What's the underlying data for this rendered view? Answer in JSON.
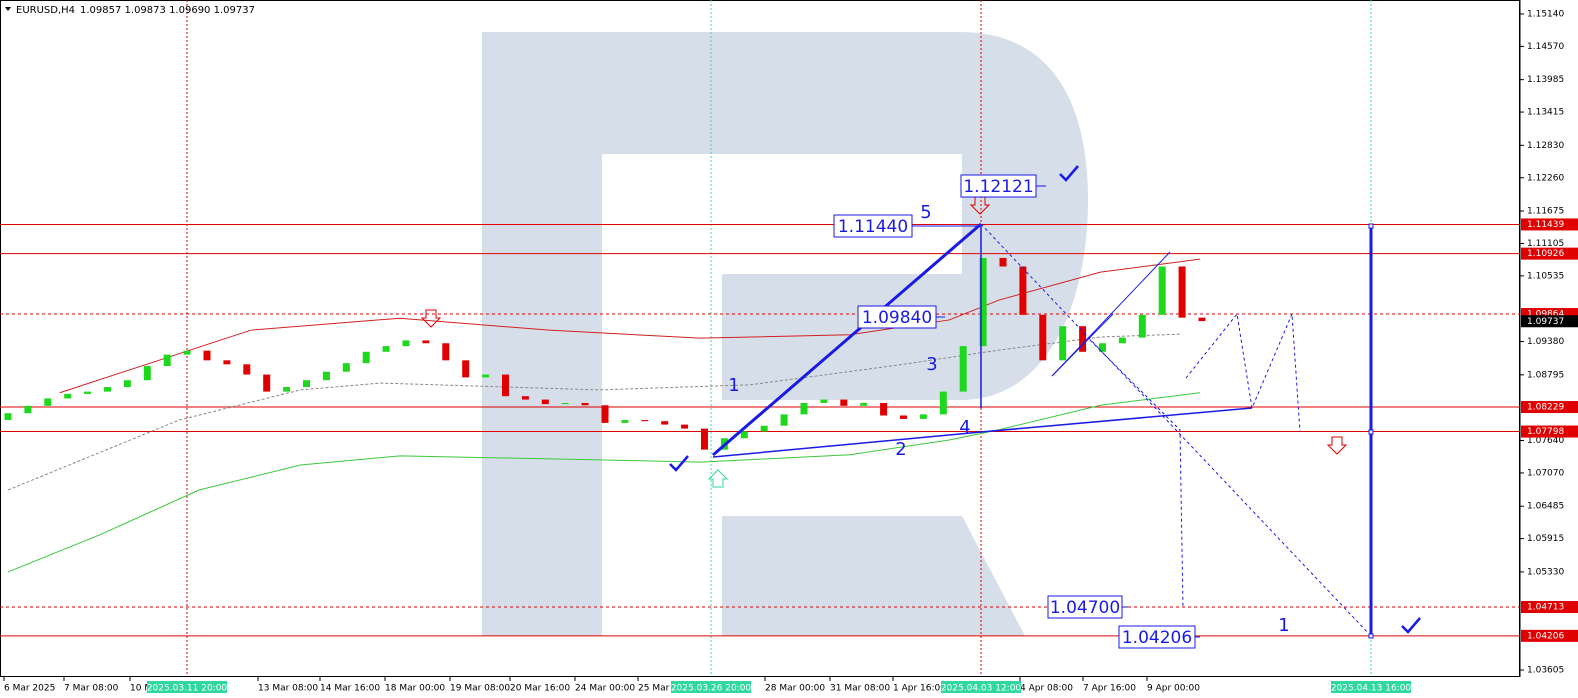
{
  "header": {
    "symbol": "EURUSD,H4",
    "quote": "1.09857 1.09873 1.09690 1.09737"
  },
  "chart_data": {
    "type": "candlestick",
    "ylim": [
      1.035,
      1.1535
    ],
    "yticks": [
      {
        "value": 1.1514,
        "label": "1.15140"
      },
      {
        "value": 1.1457,
        "label": "1.14570"
      },
      1.13985,
      1.13415,
      {
        "value": 1.1283,
        "label": "1.12830"
      },
      {
        "value": 1.1226,
        "label": "1.12260"
      },
      1.11675,
      1.11105,
      1.10535,
      {
        "value": 1.0938,
        "label": "1.09380"
      },
      1.08795,
      {
        "value": 1.0764,
        "label": "1.07640"
      },
      {
        "value": 1.0707,
        "label": "1.07070"
      },
      1.06485,
      1.05915,
      {
        "value": 1.0533,
        "label": "1.05330"
      },
      1.03605
    ],
    "up_color": "#1ed81e",
    "down_color": "#e00000",
    "open": [
      1.08,
      1.0812,
      1.0825,
      1.0838,
      1.0846,
      1.085,
      1.0858,
      1.087,
      1.0895,
      1.0915,
      1.0922,
      1.0905,
      1.0898,
      1.088,
      1.085,
      1.0858,
      1.087,
      1.0885,
      1.09,
      1.092,
      1.093,
      1.094,
      1.0935,
      1.0905,
      1.0875,
      1.088,
      1.0842,
      1.0836,
      1.0828,
      1.083,
      1.0826,
      1.0795,
      1.08,
      1.0798,
      1.0792,
      1.0785,
      1.0748,
      1.0768,
      1.078,
      1.079,
      1.081,
      1.083,
      1.0836,
      1.0825,
      1.083,
      1.0808,
      1.0802,
      1.081,
      1.085,
      1.093,
      1.1085,
      1.107,
      1.0985,
      1.0905,
      1.0965,
      1.092,
      1.0935,
      1.0945,
      1.0985,
      1.107,
      1.098
    ],
    "close": [
      1.0812,
      1.0825,
      1.0838,
      1.0846,
      1.085,
      1.0858,
      1.087,
      1.0895,
      1.0915,
      1.0922,
      1.0905,
      1.0898,
      1.088,
      1.085,
      1.0858,
      1.087,
      1.0885,
      1.09,
      1.092,
      1.093,
      1.094,
      1.0935,
      1.0905,
      1.0875,
      1.088,
      1.0842,
      1.0836,
      1.0828,
      1.083,
      1.0826,
      1.0795,
      1.08,
      1.0798,
      1.0792,
      1.0785,
      1.0748,
      1.0768,
      1.078,
      1.079,
      1.081,
      1.083,
      1.0836,
      1.0825,
      1.083,
      1.0808,
      1.0802,
      1.081,
      1.085,
      1.093,
      1.1085,
      1.107,
      1.0985,
      1.0905,
      1.0965,
      1.092,
      1.0935,
      1.0945,
      1.0985,
      1.107,
      1.098,
      1.0974
    ],
    "moving_averages": [
      {
        "color": "#d02020",
        "dash": false,
        "x": [
          2.6,
          12.2,
          19.7,
          27.2,
          34.8,
          42.3,
          47.3,
          49.8,
          54.9,
          59.9
        ],
        "values": [
          1.0848,
          1.0958,
          1.0979,
          1.0958,
          1.0944,
          1.095,
          1.0976,
          1.1011,
          1.106,
          1.1083
        ]
      },
      {
        "color": "#888888",
        "dash": true,
        "x": [
          0,
          8.6,
          14.7,
          18.7,
          29.7,
          37.3,
          44.8,
          49.8,
          54.9,
          58.9
        ],
        "values": [
          1.0677,
          1.08,
          1.0853,
          1.0865,
          1.0853,
          1.0862,
          1.0897,
          1.0923,
          1.0946,
          1.0951
        ]
      },
      {
        "color": "#3cc83c",
        "dash": false,
        "x": [
          0,
          4.6,
          9.6,
          14.7,
          19.7,
          29.7,
          34.8,
          42.3,
          47.3,
          49.8,
          54.9,
          59.9
        ],
        "values": [
          1.0533,
          1.0598,
          1.0677,
          1.0721,
          1.0737,
          1.073,
          1.0726,
          1.0739,
          1.0765,
          1.0783,
          1.0826,
          1.0848
        ]
      }
    ],
    "levels": [
      {
        "value": 1.11439,
        "style": "solid",
        "color": "#e00000"
      },
      {
        "value": 1.10926,
        "style": "solid",
        "color": "#e00000"
      },
      {
        "value": 1.09864,
        "style": "dashed",
        "color": "#e00000"
      },
      {
        "value": 1.09737,
        "style": "none",
        "color": "#000000"
      },
      {
        "value": 1.08229,
        "style": "solid",
        "color": "#e00000"
      },
      {
        "value": 1.07798,
        "style": "solid",
        "color": "#e00000"
      },
      {
        "value": 1.04713,
        "style": "dashed",
        "color": "#e00000"
      },
      {
        "value": 1.04206,
        "style": "solid",
        "color": "#e00000"
      }
    ],
    "time_labels": [
      "6 Mar 2025",
      "7 Mar 08:00",
      "10 M",
      "13 Mar 08:00",
      "14 Mar 16:00",
      "18 Mar 00:00",
      "19 Mar 08:00",
      "20 Mar 16:00",
      "24 Mar 00:00",
      "25 Mar",
      "28 Mar 00:00",
      "31 Mar 08:00",
      "1 Apr 16:00",
      "4 Apr 08:00",
      "7 Apr 16:00",
      "9 Apr 00:00"
    ],
    "highlight_labels": [
      "2025.03.11 20:00",
      "2025.03.26 20:00",
      "2025.04.03 12:00",
      "2025.04.13 16:00"
    ],
    "price_boxes": [
      "1.11440",
      "1.12121",
      "1.09840",
      "1.04700",
      "1.04206"
    ],
    "wave_labels": [
      "5",
      "3",
      "4",
      "1",
      "2",
      "1"
    ]
  }
}
